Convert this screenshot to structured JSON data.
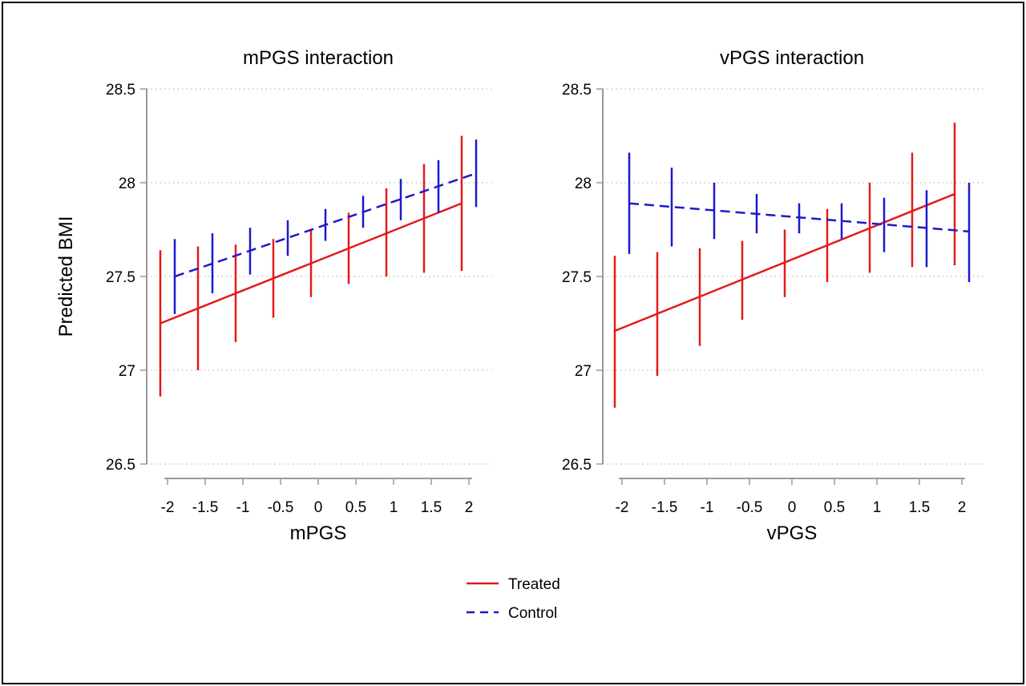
{
  "figure": {
    "ylabel": "Predicted BMI",
    "legend": [
      {
        "label": "Treated",
        "color": "#e41a1c",
        "style": "solid"
      },
      {
        "label": "Control",
        "color": "#1a1acc",
        "style": "dashed"
      }
    ],
    "legend_position": "bottom-center"
  },
  "chart_data": [
    {
      "type": "line",
      "title": "mPGS interaction",
      "xlabel": "mPGS",
      "ylabel": "Predicted BMI",
      "ylim": [
        26.5,
        28.5
      ],
      "xlim": [
        -2,
        2
      ],
      "xticks": [
        "-2",
        "-1.5",
        "-1",
        "-0.5",
        "0",
        "0.5",
        "1",
        "1.5",
        "2"
      ],
      "yticks": [
        "26.5",
        "27",
        "27.5",
        "28",
        "28.5"
      ],
      "grid": "horizontal dotted",
      "x": [
        -2,
        -1.5,
        -1,
        -0.5,
        0,
        0.5,
        1,
        1.5,
        2
      ],
      "series": [
        {
          "name": "Treated",
          "color": "#e41a1c",
          "style": "solid",
          "values": [
            27.25,
            27.33,
            27.41,
            27.49,
            27.57,
            27.65,
            27.73,
            27.81,
            27.89
          ],
          "lower": [
            26.86,
            27.0,
            27.15,
            27.28,
            27.39,
            27.46,
            27.5,
            27.52,
            27.53
          ],
          "upper": [
            27.64,
            27.66,
            27.67,
            27.7,
            27.75,
            27.84,
            27.97,
            28.1,
            28.25
          ]
        },
        {
          "name": "Control",
          "color": "#1a1acc",
          "style": "dashed",
          "values": [
            27.5,
            27.57,
            27.64,
            27.7,
            27.77,
            27.84,
            27.91,
            27.98,
            28.05
          ],
          "lower": [
            27.3,
            27.41,
            27.51,
            27.61,
            27.69,
            27.76,
            27.8,
            27.84,
            27.87
          ],
          "upper": [
            27.7,
            27.73,
            27.76,
            27.8,
            27.86,
            27.93,
            28.02,
            28.12,
            28.23
          ]
        }
      ]
    },
    {
      "type": "line",
      "title": "vPGS interaction",
      "xlabel": "vPGS",
      "ylabel": "",
      "ylim": [
        26.5,
        28.5
      ],
      "xlim": [
        -2,
        2
      ],
      "xticks": [
        "-2",
        "-1.5",
        "-1",
        "-0.5",
        "0",
        "0.5",
        "1",
        "1.5",
        "2"
      ],
      "yticks": [
        "26.5",
        "27",
        "27.5",
        "28",
        "28.5"
      ],
      "grid": "horizontal dotted",
      "x": [
        -2,
        -1.5,
        -1,
        -0.5,
        0,
        0.5,
        1,
        1.5,
        2
      ],
      "series": [
        {
          "name": "Treated",
          "color": "#e41a1c",
          "style": "solid",
          "values": [
            27.21,
            27.3,
            27.39,
            27.48,
            27.57,
            27.67,
            27.76,
            27.85,
            27.94
          ],
          "lower": [
            26.8,
            26.97,
            27.13,
            27.27,
            27.39,
            27.47,
            27.52,
            27.55,
            27.56
          ],
          "upper": [
            27.61,
            27.63,
            27.65,
            27.69,
            27.75,
            27.86,
            28.0,
            28.16,
            28.32
          ]
        },
        {
          "name": "Control",
          "color": "#1a1acc",
          "style": "dashed",
          "values": [
            27.89,
            27.87,
            27.85,
            27.83,
            27.81,
            27.8,
            27.78,
            27.76,
            27.74
          ],
          "lower": [
            27.62,
            27.66,
            27.7,
            27.73,
            27.73,
            27.7,
            27.63,
            27.55,
            27.47
          ],
          "upper": [
            28.16,
            28.08,
            28.0,
            27.94,
            27.89,
            27.89,
            27.92,
            27.96,
            28.0
          ]
        }
      ]
    }
  ]
}
